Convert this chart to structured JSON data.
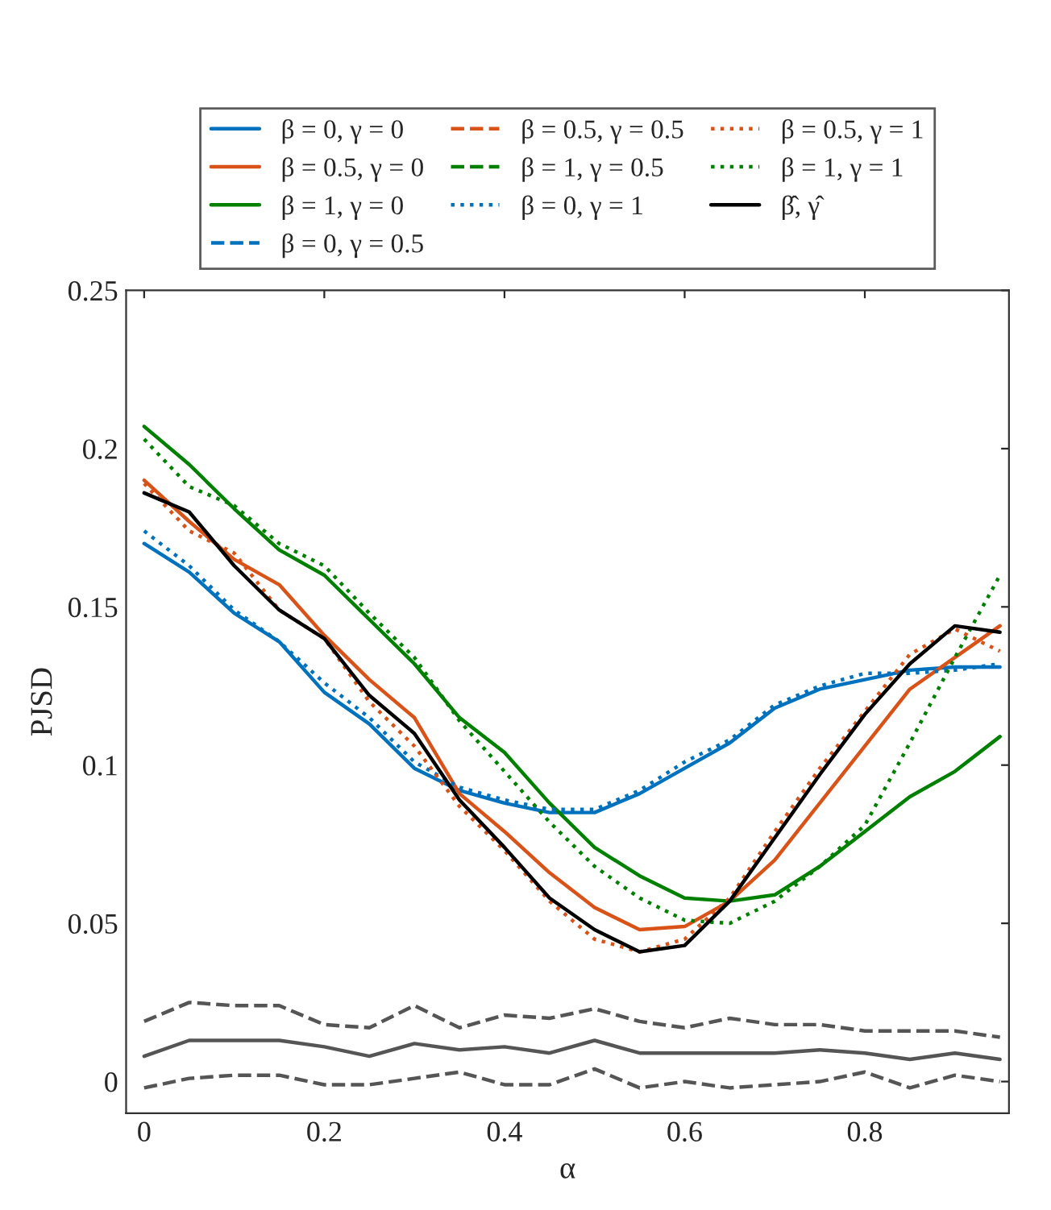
{
  "chart_data": {
    "type": "line",
    "xlabel": "α",
    "ylabel": "PJSD",
    "x": [
      0,
      0.05,
      0.1,
      0.15,
      0.2,
      0.25,
      0.3,
      0.35,
      0.4,
      0.45,
      0.5,
      0.55,
      0.6,
      0.65,
      0.7,
      0.75,
      0.8,
      0.85,
      0.9,
      0.95
    ],
    "xlim": [
      -0.02,
      0.96
    ],
    "ylim": [
      -0.01,
      0.25
    ],
    "xticks": [
      0,
      0.2,
      0.4,
      0.6,
      0.8
    ],
    "yticks": [
      0,
      0.05,
      0.1,
      0.15,
      0.2,
      0.25
    ],
    "grid": false,
    "legend": "top",
    "series": [
      {
        "name": "β = 0, γ = 0",
        "color": "#0072bd",
        "line_style": "solid",
        "values": [
          0.17,
          0.161,
          0.148,
          0.139,
          0.123,
          0.113,
          0.099,
          0.092,
          0.088,
          0.085,
          0.085,
          0.091,
          0.099,
          0.107,
          0.118,
          0.124,
          0.127,
          0.13,
          0.131,
          0.131
        ]
      },
      {
        "name": "β = 0.5, γ = 0",
        "color": "#d95319",
        "line_style": "solid",
        "values": [
          0.19,
          0.177,
          0.165,
          0.157,
          0.141,
          0.127,
          0.115,
          0.091,
          0.079,
          0.066,
          0.055,
          0.048,
          0.049,
          0.057,
          0.07,
          0.088,
          0.106,
          0.124,
          0.134,
          0.144
        ]
      },
      {
        "name": "β = 1, γ = 0",
        "color": "#008000",
        "line_style": "solid",
        "values": [
          0.207,
          0.195,
          0.181,
          0.168,
          0.16,
          0.146,
          0.132,
          0.115,
          0.104,
          0.088,
          0.074,
          0.065,
          0.058,
          0.057,
          0.059,
          0.068,
          0.079,
          0.09,
          0.098,
          0.109
        ]
      },
      {
        "name": "β = 0, γ = 0.5",
        "color": "#0072bd",
        "line_style": "dashed",
        "values": [
          null,
          null,
          null,
          null,
          null,
          null,
          null,
          null,
          null,
          null,
          null,
          null,
          null,
          null,
          null,
          null,
          null,
          null,
          null,
          null
        ]
      },
      {
        "name": "β = 0.5, γ = 0.5",
        "color": "#d95319",
        "line_style": "dashed",
        "values": [
          null,
          null,
          null,
          null,
          null,
          null,
          null,
          null,
          null,
          null,
          null,
          null,
          null,
          null,
          null,
          null,
          null,
          null,
          null,
          null
        ]
      },
      {
        "name": "β = 1, γ = 0.5",
        "color": "#008000",
        "line_style": "dashed",
        "values": [
          null,
          null,
          null,
          null,
          null,
          null,
          null,
          null,
          null,
          null,
          null,
          null,
          null,
          null,
          null,
          null,
          null,
          null,
          null,
          null
        ]
      },
      {
        "name": "β = 0, γ = 1",
        "color": "#0072bd",
        "line_style": "dotted",
        "values": [
          0.174,
          0.163,
          0.149,
          0.139,
          0.126,
          0.115,
          0.101,
          0.093,
          0.089,
          0.086,
          0.086,
          0.092,
          0.101,
          0.108,
          0.119,
          0.125,
          0.129,
          0.129,
          0.13,
          0.132
        ]
      },
      {
        "name": "β = 0.5, γ = 1",
        "color": "#d95319",
        "line_style": "dotted",
        "values": [
          0.189,
          0.174,
          0.167,
          0.149,
          0.14,
          0.12,
          0.106,
          0.087,
          0.073,
          0.057,
          0.045,
          0.041,
          0.045,
          0.058,
          0.079,
          0.099,
          0.117,
          0.135,
          0.143,
          0.136
        ]
      },
      {
        "name": "β = 1, γ = 1",
        "color": "#008000",
        "line_style": "dotted",
        "values": [
          0.203,
          0.188,
          0.182,
          0.17,
          0.163,
          0.148,
          0.134,
          0.114,
          0.098,
          0.082,
          0.068,
          0.058,
          0.051,
          0.05,
          0.057,
          0.068,
          0.081,
          0.107,
          0.134,
          0.16
        ]
      },
      {
        "name": "β̂, γ̂",
        "color": "#000000",
        "line_style": "solid",
        "values": [
          0.186,
          0.18,
          0.163,
          0.149,
          0.14,
          0.122,
          0.11,
          0.089,
          0.074,
          0.058,
          0.048,
          0.041,
          0.043,
          0.057,
          0.077,
          0.097,
          0.116,
          0.132,
          0.144,
          0.142
        ]
      },
      {
        "color": "#555555",
        "line_style": "solid",
        "values": [
          0.008,
          0.013,
          0.013,
          0.013,
          0.011,
          0.008,
          0.012,
          0.01,
          0.011,
          0.009,
          0.013,
          0.009,
          0.009,
          0.009,
          0.009,
          0.01,
          0.009,
          0.007,
          0.009,
          0.007
        ]
      },
      {
        "color": "#555555",
        "line_style": "dashed",
        "values": [
          -0.002,
          0.001,
          0.002,
          0.002,
          -0.001,
          -0.001,
          0.001,
          0.003,
          -0.001,
          -0.001,
          0.004,
          -0.002,
          0.0,
          -0.002,
          -0.001,
          0.0,
          0.003,
          -0.002,
          0.002,
          0.0
        ]
      },
      {
        "color": "#555555",
        "line_style": "dashed",
        "values": [
          0.019,
          0.025,
          0.024,
          0.024,
          0.018,
          0.017,
          0.024,
          0.017,
          0.021,
          0.02,
          0.023,
          0.019,
          0.017,
          0.02,
          0.018,
          0.018,
          0.016,
          0.016,
          0.016,
          0.014
        ]
      }
    ]
  }
}
